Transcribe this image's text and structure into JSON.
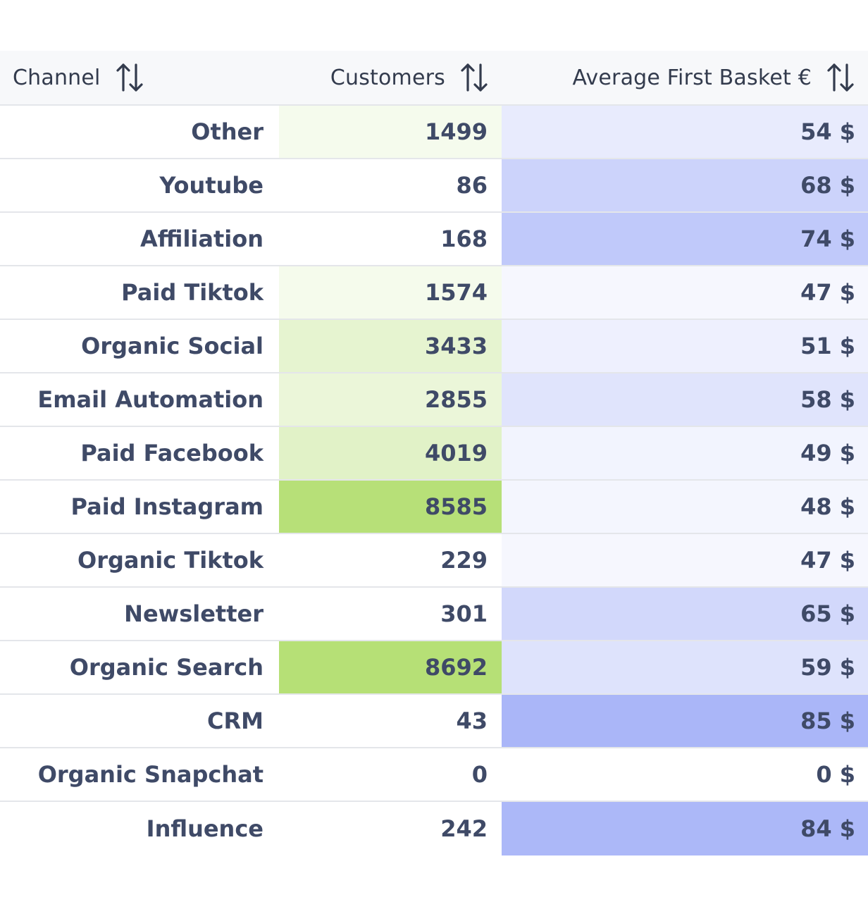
{
  "table": {
    "headers": {
      "channel": "Channel",
      "customers": "Customers",
      "basket": "Average First Basket €"
    },
    "customers_max": 8692,
    "basket_max": 85,
    "colors": {
      "customers_heat": "#b6e076",
      "basket_heat": "#aab6f8",
      "text": "#3f4a67",
      "header_bg": "#f7f8fa",
      "divider": "#e4e6ea"
    },
    "rows": [
      {
        "channel": "Other",
        "customers": 1499,
        "customers_label": "1499",
        "basket": 54,
        "basket_label": "54 $"
      },
      {
        "channel": "Youtube",
        "customers": 86,
        "customers_label": "86",
        "basket": 68,
        "basket_label": "68 $"
      },
      {
        "channel": "Affiliation",
        "customers": 168,
        "customers_label": "168",
        "basket": 74,
        "basket_label": "74 $"
      },
      {
        "channel": "Paid Tiktok",
        "customers": 1574,
        "customers_label": "1574",
        "basket": 47,
        "basket_label": "47 $"
      },
      {
        "channel": "Organic Social",
        "customers": 3433,
        "customers_label": "3433",
        "basket": 51,
        "basket_label": "51 $"
      },
      {
        "channel": "Email Automation",
        "customers": 2855,
        "customers_label": "2855",
        "basket": 58,
        "basket_label": "58 $"
      },
      {
        "channel": "Paid Facebook",
        "customers": 4019,
        "customers_label": "4019",
        "basket": 49,
        "basket_label": "49 $"
      },
      {
        "channel": "Paid Instagram",
        "customers": 8585,
        "customers_label": "8585",
        "basket": 48,
        "basket_label": "48 $"
      },
      {
        "channel": "Organic Tiktok",
        "customers": 229,
        "customers_label": "229",
        "basket": 47,
        "basket_label": "47 $"
      },
      {
        "channel": "Newsletter",
        "customers": 301,
        "customers_label": "301",
        "basket": 65,
        "basket_label": "65 $"
      },
      {
        "channel": "Organic Search",
        "customers": 8692,
        "customers_label": "8692",
        "basket": 59,
        "basket_label": "59 $"
      },
      {
        "channel": "CRM",
        "customers": 43,
        "customers_label": "43",
        "basket": 85,
        "basket_label": "85 $"
      },
      {
        "channel": "Organic Snapchat",
        "customers": 0,
        "customers_label": "0",
        "basket": 0,
        "basket_label": "0 $"
      },
      {
        "channel": "Influence",
        "customers": 242,
        "customers_label": "242",
        "basket": 84,
        "basket_label": "84 $"
      }
    ]
  }
}
